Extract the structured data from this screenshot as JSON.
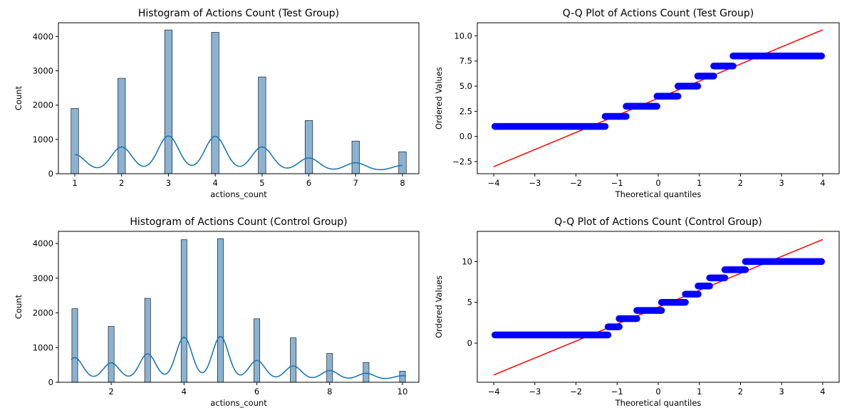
{
  "chart_data": [
    {
      "type": "bar",
      "title": "Histogram of Actions Count (Test Group)",
      "xlabel": "actions_count",
      "ylabel": "Count",
      "xlim": [
        0.65,
        8.35
      ],
      "ylim": [
        0,
        4400
      ],
      "xticks": [
        1,
        2,
        3,
        4,
        5,
        6,
        7,
        8
      ],
      "yticks": [
        0,
        1000,
        2000,
        3000,
        4000
      ],
      "bar_color": "#8ab3d3",
      "kde_color": "#1f77b4",
      "bars": [
        {
          "x": 1,
          "count": 1900
        },
        {
          "x": 2,
          "count": 2780
        },
        {
          "x": 3,
          "count": 4190
        },
        {
          "x": 4,
          "count": 4120
        },
        {
          "x": 5,
          "count": 2820
        },
        {
          "x": 6,
          "count": 1550
        },
        {
          "x": 7,
          "count": 950
        },
        {
          "x": 8,
          "count": 640
        }
      ],
      "kde_peaks": [
        470,
        690,
        1010,
        1000,
        690,
        370,
        230,
        150
      ]
    },
    {
      "type": "scatter",
      "title": "Q-Q Plot of Actions Count (Test Group)",
      "xlabel": "Theoretical quantiles",
      "ylabel": "Ordered Values",
      "xlim": [
        -4.4,
        4.4
      ],
      "ylim": [
        -3.7,
        11.3
      ],
      "xticks": [
        -4,
        -3,
        -2,
        -1,
        0,
        1,
        2,
        3,
        4
      ],
      "yticks": [
        -2.5,
        0.0,
        2.5,
        5.0,
        7.5,
        10.0
      ],
      "point_color": "#0000ff",
      "line_color": "#ff0000",
      "steps": [
        {
          "value": 1,
          "x_from": -3.97,
          "x_to": -1.29
        },
        {
          "value": 2,
          "x_from": -1.29,
          "x_to": -0.78
        },
        {
          "value": 3,
          "x_from": -0.78,
          "x_to": -0.03
        },
        {
          "value": 4,
          "x_from": -0.03,
          "x_to": 0.48
        },
        {
          "value": 5,
          "x_from": 0.48,
          "x_to": 0.96
        },
        {
          "value": 6,
          "x_from": 0.96,
          "x_to": 1.35
        },
        {
          "value": 7,
          "x_from": 1.35,
          "x_to": 1.82
        },
        {
          "value": 8,
          "x_from": 1.82,
          "x_to": 3.97
        }
      ],
      "fit_line": [
        [
          -4,
          -3.0
        ],
        [
          4,
          10.6
        ]
      ]
    },
    {
      "type": "bar",
      "title": "Histogram of Actions Count (Control Group)",
      "xlabel": "actions_count",
      "ylabel": "Count",
      "xlim": [
        0.55,
        10.45
      ],
      "ylim": [
        0,
        4350
      ],
      "xticks": [
        2,
        4,
        6,
        8,
        10
      ],
      "yticks": [
        0,
        1000,
        2000,
        3000,
        4000
      ],
      "bar_color": "#8ab3d3",
      "kde_color": "#1f77b4",
      "bars": [
        {
          "x": 1,
          "count": 2120
        },
        {
          "x": 2,
          "count": 1610
        },
        {
          "x": 3,
          "count": 2420
        },
        {
          "x": 4,
          "count": 4110
        },
        {
          "x": 5,
          "count": 4140
        },
        {
          "x": 6,
          "count": 1830
        },
        {
          "x": 7,
          "count": 1280
        },
        {
          "x": 8,
          "count": 830
        },
        {
          "x": 9,
          "count": 570
        },
        {
          "x": 10,
          "count": 320
        }
      ],
      "kde_peaks": [
        620,
        470,
        730,
        1210,
        1230,
        540,
        380,
        250,
        170,
        100
      ]
    },
    {
      "type": "scatter",
      "title": "Q-Q Plot of Actions Count (Control Group)",
      "xlabel": "Theoretical quantiles",
      "ylabel": "Ordered Values",
      "xlim": [
        -4.4,
        4.4
      ],
      "ylim": [
        -4.8,
        13.7
      ],
      "xticks": [
        -4,
        -3,
        -2,
        -1,
        0,
        1,
        2,
        3,
        4
      ],
      "yticks": [
        0,
        5,
        10
      ],
      "point_color": "#0000ff",
      "line_color": "#ff0000",
      "steps": [
        {
          "value": 1,
          "x_from": -3.97,
          "x_to": -1.22
        },
        {
          "value": 2,
          "x_from": -1.22,
          "x_to": -0.95
        },
        {
          "value": 3,
          "x_from": -0.95,
          "x_to": -0.52
        },
        {
          "value": 4,
          "x_from": -0.52,
          "x_to": 0.08
        },
        {
          "value": 5,
          "x_from": 0.08,
          "x_to": 0.66
        },
        {
          "value": 6,
          "x_from": 0.66,
          "x_to": 0.97
        },
        {
          "value": 7,
          "x_from": 0.97,
          "x_to": 1.25
        },
        {
          "value": 8,
          "x_from": 1.25,
          "x_to": 1.62
        },
        {
          "value": 9,
          "x_from": 1.62,
          "x_to": 2.12
        },
        {
          "value": 10,
          "x_from": 2.12,
          "x_to": 3.97
        }
      ],
      "fit_line": [
        [
          -4,
          -3.9
        ],
        [
          4,
          12.7
        ]
      ]
    }
  ]
}
